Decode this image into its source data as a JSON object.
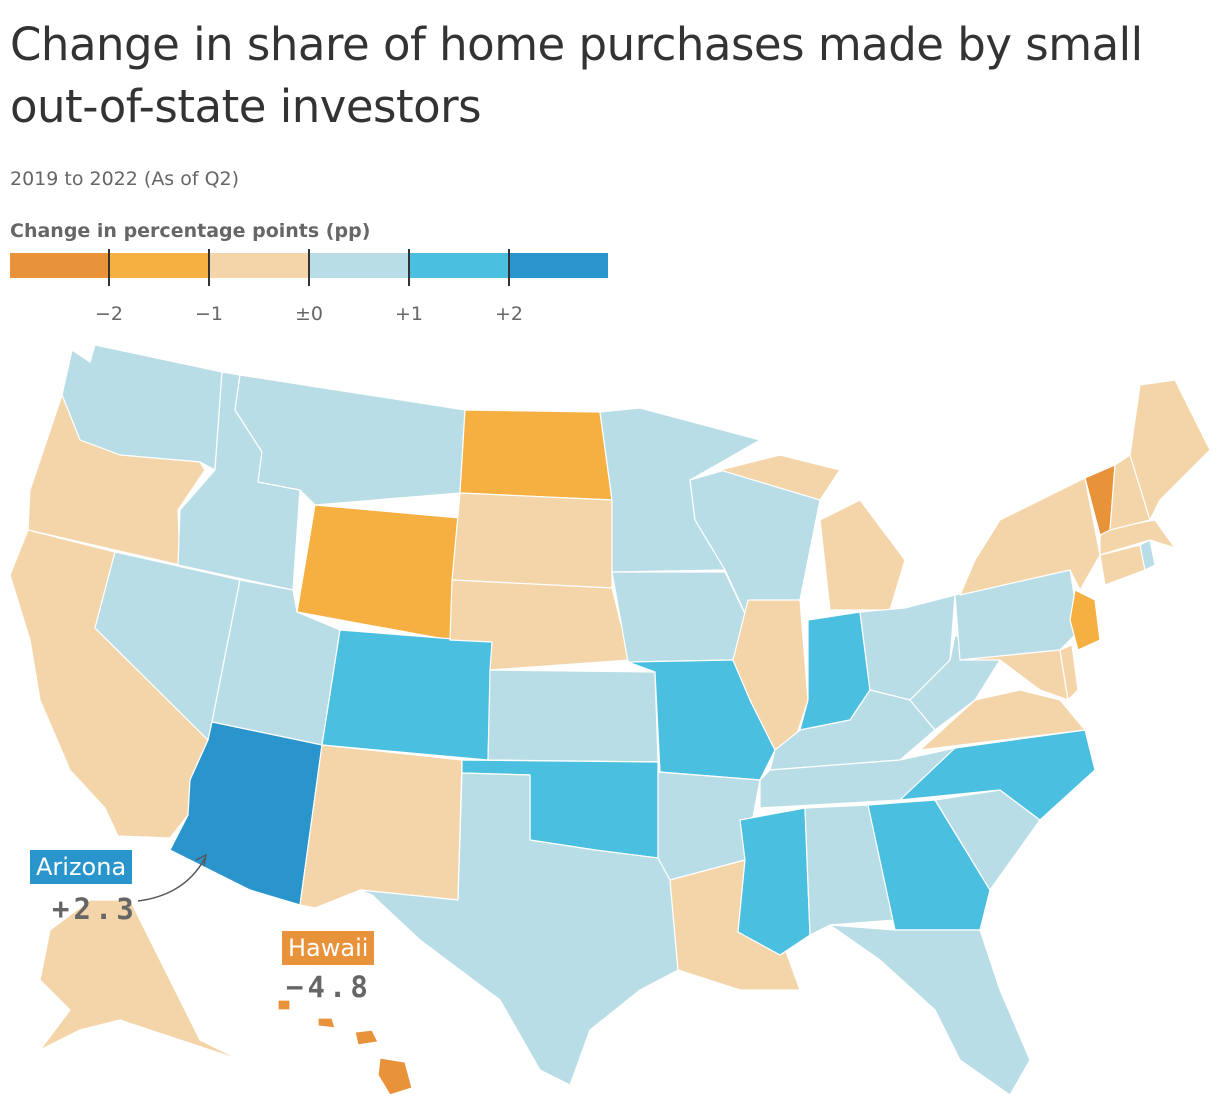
{
  "title": "Change in share of home purchases made by small out-of-state investors",
  "subtitle": "2019 to 2022 (As of Q2)",
  "legend": {
    "title": "Change in percentage points (pp)",
    "colors": [
      "#e8923a",
      "#f5b041",
      "#f3d5a9",
      "#b8dde6",
      "#4bbfe0",
      "#2a95cc"
    ],
    "labels": [
      "−2",
      "−1",
      "±0",
      "+1",
      "+2"
    ]
  },
  "map_data": {
    "type": "choropleth",
    "region": "United States",
    "bins": [
      {
        "label": "below −2",
        "color": "#e8923a",
        "states": [
          "Vermont",
          "Hawaii"
        ]
      },
      {
        "label": "−2 to −1",
        "color": "#f5b041",
        "states": [
          "North Dakota",
          "Wyoming",
          "New Jersey"
        ]
      },
      {
        "label": "−1 to ±0",
        "color": "#f3d5a9",
        "states": [
          "Oregon",
          "California",
          "New Mexico",
          "South Dakota",
          "Nebraska",
          "Louisiana",
          "Illinois",
          "Michigan",
          "Virginia",
          "Maryland",
          "Delaware",
          "New York",
          "Connecticut",
          "Massachusetts",
          "New Hampshire",
          "Maine",
          "Alaska"
        ]
      },
      {
        "label": "±0 to +1",
        "color": "#b8dde6",
        "states": [
          "Washington",
          "Idaho",
          "Montana",
          "Nevada",
          "Utah",
          "Kansas",
          "Texas",
          "Minnesota",
          "Iowa",
          "Wisconsin",
          "Arkansas",
          "Alabama",
          "Florida",
          "South Carolina",
          "Tennessee",
          "Kentucky",
          "Ohio",
          "West Virginia",
          "Pennsylvania",
          "Rhode Island"
        ]
      },
      {
        "label": "+1 to +2",
        "color": "#4bbfe0",
        "states": [
          "Colorado",
          "Oklahoma",
          "Missouri",
          "Indiana",
          "Mississippi",
          "Georgia",
          "North Carolina"
        ]
      },
      {
        "label": "above +2",
        "color": "#2a95cc",
        "states": [
          "Arizona"
        ]
      }
    ]
  },
  "callouts": {
    "arizona": {
      "name": "Arizona",
      "value": "+2.3",
      "color": "#2a95cc"
    },
    "hawaii": {
      "name": "Hawaii",
      "value": "−4.8",
      "color": "#e8923a"
    }
  }
}
